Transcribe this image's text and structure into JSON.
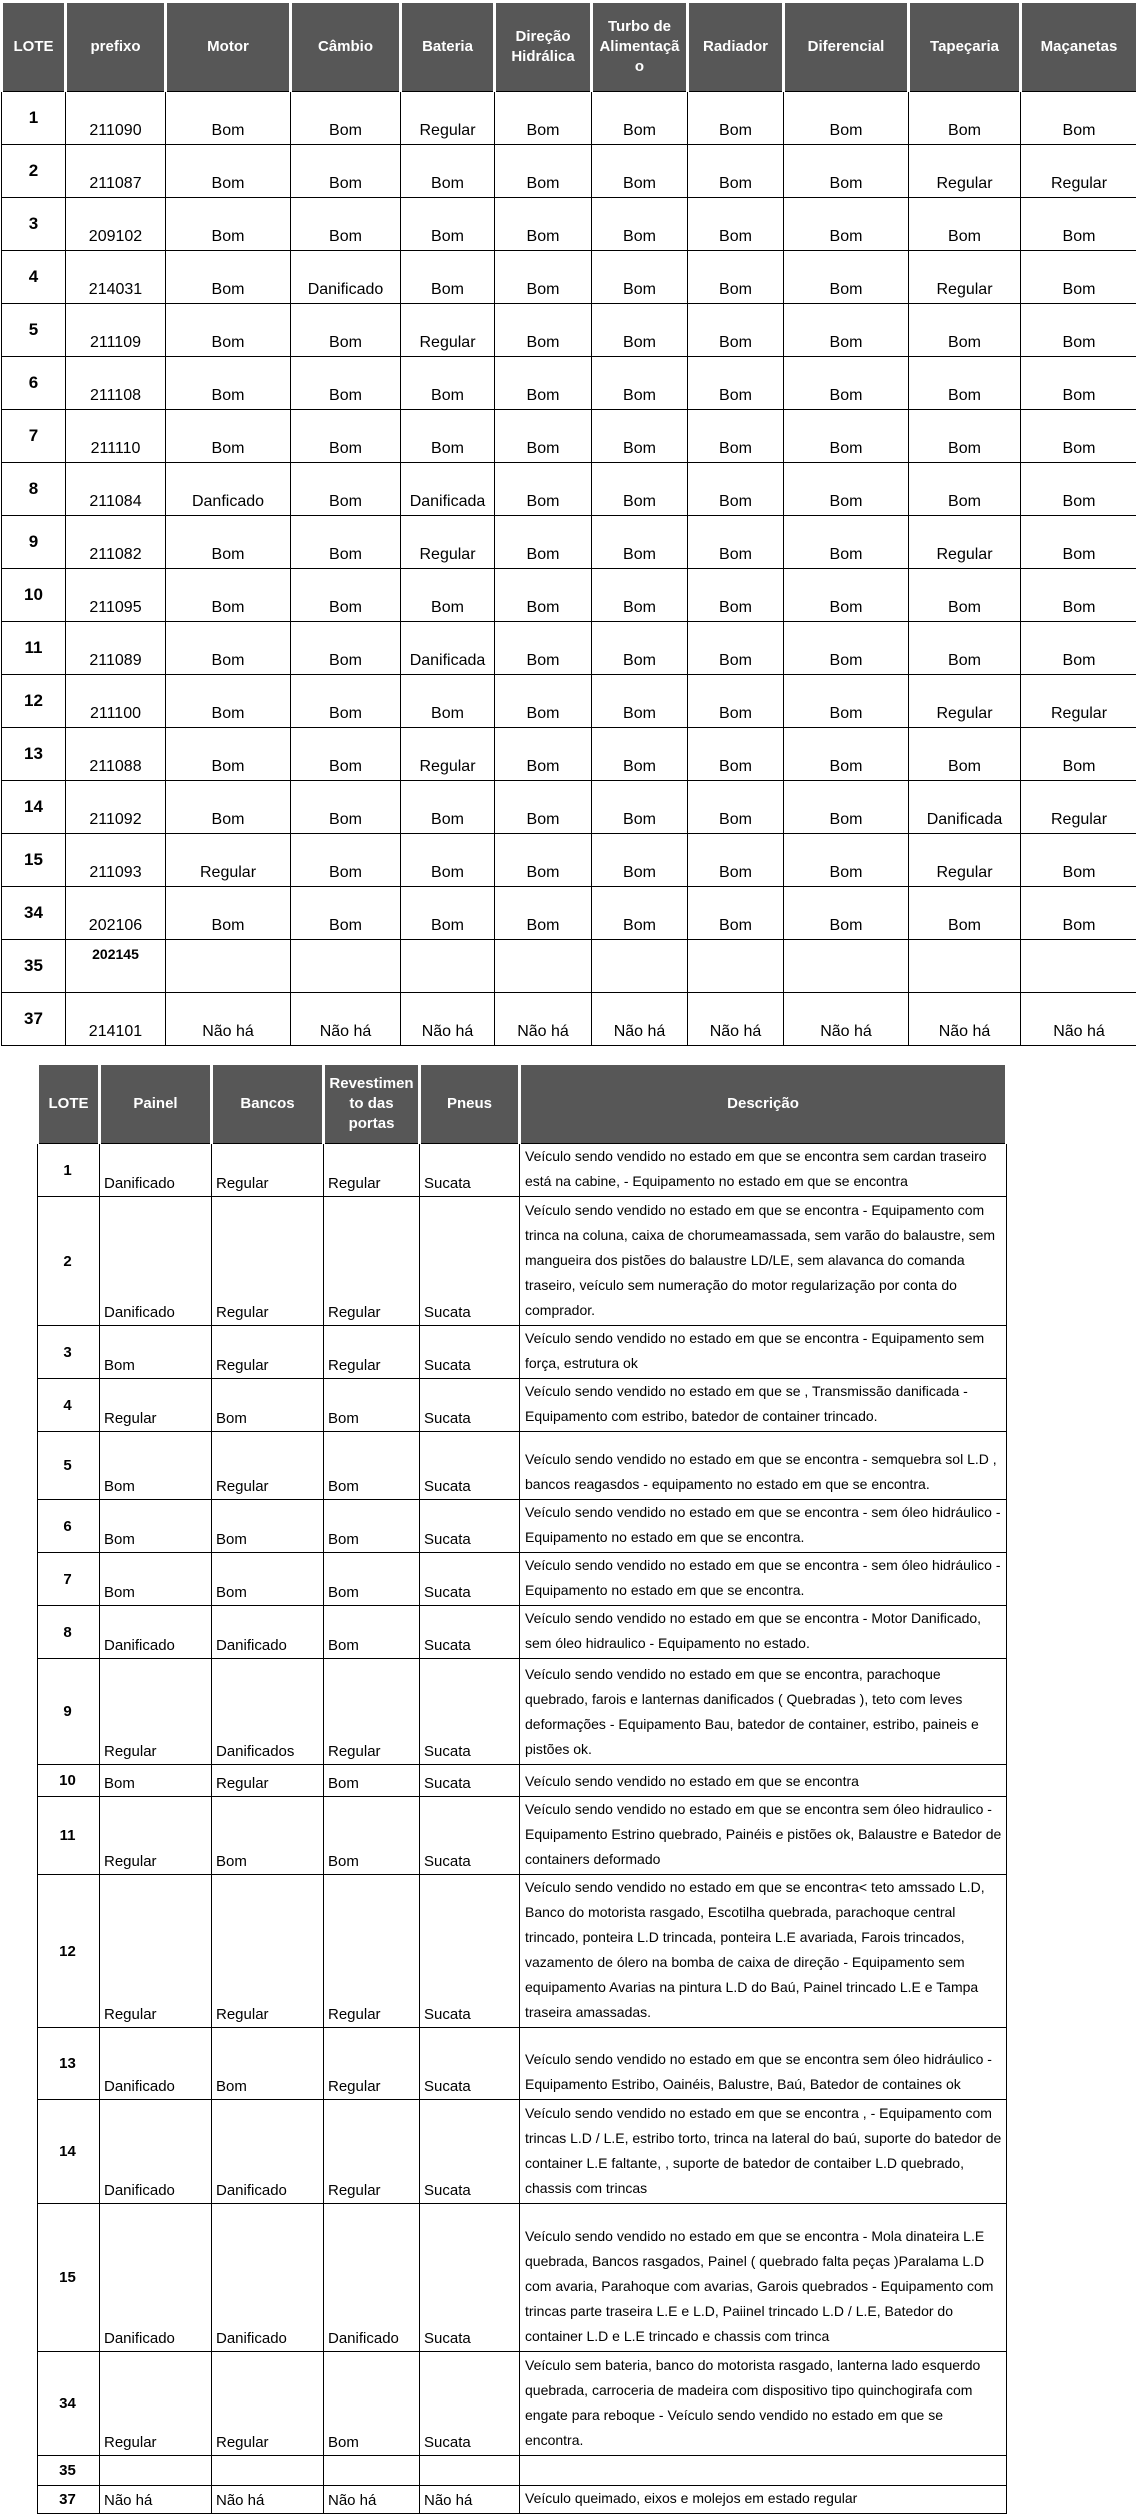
{
  "colors": {
    "header_background": "#575757",
    "header_text": "#ffffff",
    "body_text": "#000000",
    "grid_border": "#000000",
    "page_background": "#ffffff"
  },
  "table1": {
    "name": "vehicle-mechanical-condition-table",
    "columns": [
      {
        "key": "lote",
        "label": "LOTE"
      },
      {
        "key": "prefixo",
        "label": "prefixo"
      },
      {
        "key": "motor",
        "label": "Motor"
      },
      {
        "key": "cambio",
        "label": "Câmbio"
      },
      {
        "key": "bateria",
        "label": "Bateria"
      },
      {
        "key": "direcao_hidraulica",
        "label": "Direção Hidrálica"
      },
      {
        "key": "turbo_de_alimentacao",
        "label": "Turbo de Alimentação"
      },
      {
        "key": "radiador",
        "label": "Radiador"
      },
      {
        "key": "diferencial",
        "label": "Diferencial"
      },
      {
        "key": "tapecaria",
        "label": "Tapeçaria"
      },
      {
        "key": "macanetas",
        "label": "Maçanetas"
      }
    ],
    "rows": [
      {
        "lote": "1",
        "cells": [
          "211090",
          "Bom",
          "Bom",
          "Regular",
          "Bom",
          "Bom",
          "Bom",
          "Bom",
          "Bom",
          "Bom"
        ]
      },
      {
        "lote": "2",
        "cells": [
          "211087",
          "Bom",
          "Bom",
          "Bom",
          "Bom",
          "Bom",
          "Bom",
          "Bom",
          "Regular",
          "Regular"
        ]
      },
      {
        "lote": "3",
        "cells": [
          "209102",
          "Bom",
          "Bom",
          "Bom",
          "Bom",
          "Bom",
          "Bom",
          "Bom",
          "Bom",
          "Bom"
        ]
      },
      {
        "lote": "4",
        "cells": [
          "214031",
          "Bom",
          "Danificado",
          "Bom",
          "Bom",
          "Bom",
          "Bom",
          "Bom",
          "Regular",
          "Bom"
        ]
      },
      {
        "lote": "5",
        "cells": [
          "211109",
          "Bom",
          "Bom",
          "Regular",
          "Bom",
          "Bom",
          "Bom",
          "Bom",
          "Bom",
          "Bom"
        ]
      },
      {
        "lote": "6",
        "cells": [
          "211108",
          "Bom",
          "Bom",
          "Bom",
          "Bom",
          "Bom",
          "Bom",
          "Bom",
          "Bom",
          "Bom"
        ]
      },
      {
        "lote": "7",
        "cells": [
          "211110",
          "Bom",
          "Bom",
          "Bom",
          "Bom",
          "Bom",
          "Bom",
          "Bom",
          "Bom",
          "Bom"
        ]
      },
      {
        "lote": "8",
        "cells": [
          "211084",
          "Danficado",
          "Bom",
          "Danificada",
          "Bom",
          "Bom",
          "Bom",
          "Bom",
          "Bom",
          "Bom"
        ]
      },
      {
        "lote": "9",
        "cells": [
          "211082",
          "Bom",
          "Bom",
          "Regular",
          "Bom",
          "Bom",
          "Bom",
          "Bom",
          "Regular",
          "Bom"
        ]
      },
      {
        "lote": "10",
        "cells": [
          "211095",
          "Bom",
          "Bom",
          "Bom",
          "Bom",
          "Bom",
          "Bom",
          "Bom",
          "Bom",
          "Bom"
        ]
      },
      {
        "lote": "11",
        "cells": [
          "211089",
          "Bom",
          "Bom",
          "Danificada",
          "Bom",
          "Bom",
          "Bom",
          "Bom",
          "Bom",
          "Bom"
        ]
      },
      {
        "lote": "12",
        "cells": [
          "211100",
          "Bom",
          "Bom",
          "Bom",
          "Bom",
          "Bom",
          "Bom",
          "Bom",
          "Regular",
          "Regular"
        ]
      },
      {
        "lote": "13",
        "cells": [
          "211088",
          "Bom",
          "Bom",
          "Regular",
          "Bom",
          "Bom",
          "Bom",
          "Bom",
          "Bom",
          "Bom"
        ]
      },
      {
        "lote": "14",
        "cells": [
          "211092",
          "Bom",
          "Bom",
          "Bom",
          "Bom",
          "Bom",
          "Bom",
          "Bom",
          "Danificada",
          "Regular"
        ]
      },
      {
        "lote": "15",
        "cells": [
          "211093",
          "Regular",
          "Bom",
          "Bom",
          "Bom",
          "Bom",
          "Bom",
          "Bom",
          "Regular",
          "Bom"
        ]
      },
      {
        "lote": "34",
        "cells": [
          "202106",
          "Bom",
          "Bom",
          "Bom",
          "Bom",
          "Bom",
          "Bom",
          "Bom",
          "Bom",
          "Bom"
        ]
      },
      {
        "lote": "35",
        "cells": [
          "202145",
          "",
          "",
          "",
          "",
          "",
          "",
          "",
          "",
          ""
        ]
      },
      {
        "lote": "37",
        "cells": [
          "214101",
          "Não há",
          "Não há",
          "Não há",
          "Não há",
          "Não há",
          "Não há",
          "Não há",
          "Não há",
          "Não há"
        ]
      }
    ]
  },
  "table2": {
    "name": "vehicle-interior-description-table",
    "columns": [
      {
        "key": "lote",
        "label": "LOTE"
      },
      {
        "key": "painel",
        "label": "Painel"
      },
      {
        "key": "bancos",
        "label": "Bancos"
      },
      {
        "key": "revestimento_das_portas",
        "label": "Revestimento das portas"
      },
      {
        "key": "pneus",
        "label": "Pneus"
      },
      {
        "key": "descricao",
        "label": "Descrição"
      }
    ],
    "rows": [
      {
        "lote": "1",
        "cells": [
          "Danificado",
          "Regular",
          "Regular",
          "Sucata",
          "Veículo sendo vendido no estado em que se encontra sem cardan traseiro está na cabine, - Equipamento no estado em que se encontra"
        ]
      },
      {
        "lote": "2",
        "cells": [
          "Danificado",
          "Regular",
          "Regular",
          "Sucata",
          "Veículo sendo vendido no estado em que se encontra - Equipamento com trinca na coluna, caixa de chorumeamassada, sem varão do balaustre, sem mangueira dos pistões do balaustre LD/LE, sem alavanca do comanda traseiro, veículo sem numeração do motor regularização por conta do comprador."
        ]
      },
      {
        "lote": "3",
        "cells": [
          "Bom",
          "Regular",
          "Regular",
          "Sucata",
          "Veículo sendo vendido no estado em que se encontra - Equipamento sem força, estrutura ok"
        ]
      },
      {
        "lote": "4",
        "cells": [
          "Regular",
          "Bom",
          "Bom",
          "Sucata",
          "Veículo sendo vendido no estado em que se , Transmissão danificada - Equipamento com estribo, batedor de container trincado."
        ]
      },
      {
        "lote": "5",
        "cells": [
          "Bom",
          "Regular",
          "Bom",
          "Sucata",
          "Veículo sendo vendido no estado em que se encontra - semquebra sol L.D , bancos reagasdos - equipamento no estado em que se encontra."
        ]
      },
      {
        "lote": "6",
        "cells": [
          "Bom",
          "Bom",
          "Bom",
          "Sucata",
          "Veículo sendo vendido no estado em que se encontra - sem óleo hidráulico - Equipamento no estado em que se encontra."
        ]
      },
      {
        "lote": "7",
        "cells": [
          "Bom",
          "Bom",
          "Bom",
          "Sucata",
          "Veículo sendo vendido no estado em que se encontra - sem óleo hidráulico - Equipamento no estado em que se encontra."
        ]
      },
      {
        "lote": "8",
        "cells": [
          "Danificado",
          "Danificado",
          "Bom",
          "Sucata",
          "Veículo sendo vendido no estado em que se encontra - Motor Danificado, sem óleo hidraulico - Equipamento no estado."
        ]
      },
      {
        "lote": "9",
        "cells": [
          "Regular",
          "Danificados",
          "Regular",
          "Sucata",
          "Veículo sendo vendido no estado em que se encontra, parachoque quebrado, farois e lanternas danificados ( Quebradas ), teto com leves deformações - Equipamento Bau, batedor de container, estribo, paineis e pistões ok."
        ]
      },
      {
        "lote": "10",
        "cells": [
          "Bom",
          "Regular",
          "Bom",
          "Sucata",
          "Veículo sendo vendido no estado em que se encontra"
        ]
      },
      {
        "lote": "11",
        "cells": [
          "Regular",
          "Bom",
          "Bom",
          "Sucata",
          "Veículo sendo vendido no estado em que se encontra sem óleo hidraulico - Equipamento Estrino quebrado, Painéis e pistões ok, Balaustre e Batedor de containers deformado"
        ]
      },
      {
        "lote": "12",
        "cells": [
          "Regular",
          "Regular",
          "Regular",
          "Sucata",
          "Veículo sendo vendido no estado em que se encontra< teto amssado L.D, Banco do motorista rasgado, Escotilha quebrada, parachoque central trincado, ponteira L.D trincada, ponteira L.E avariada, Farois trincados, vazamento de ólero na bomba de caixa de direção - Equipamento sem equipamento Avarias na pintura L.D do Baú, Painel trincado L.E e Tampa traseira amassadas."
        ]
      },
      {
        "lote": "13",
        "cells": [
          "Danificado",
          "Bom",
          "Regular",
          "Sucata",
          "Veículo sendo vendido no estado em que se encontra sem óleo hidráulico - Equipamento Estribo, Oainéis, Balustre, Baú, Batedor de containes ok"
        ]
      },
      {
        "lote": "14",
        "cells": [
          "Danificado",
          "Danificado",
          "Regular",
          "Sucata",
          "Veículo sendo vendido no estado em que se encontra , - Equipamento com trincas L.D / L.E, estribo torto, trinca na lateral do baú, suporte do batedor de container L.E faltante, , suporte de batedor de contaiber L.D quebrado, chassis com trincas"
        ]
      },
      {
        "lote": "15",
        "cells": [
          "Danificado",
          "Danificado",
          "Danificado",
          "Sucata",
          "Veículo sendo vendido no estado em que se encontra - Mola dinateira L.E quebrada, Bancos rasgados, Painel ( quebrado falta peças )Paralama L.D com avaria, Parahoque com avarias, Garois quebrados - Equipamento com trincas parte traseira L.E e L.D, Paiinel trincado L.D / L.E, Batedor do container L.D e L.E trincado e chassis com trinca"
        ]
      },
      {
        "lote": "34",
        "cells": [
          "Regular",
          "Regular",
          "Bom",
          "Sucata",
          "Veículo sem bateria, banco do motorista rasgado, lanterna lado esquerdo quebrada, carroceria de madeira com dispositivo tipo quinchogirafa com engate para reboque - Veículo sendo vendido no estado em que se encontra."
        ]
      },
      {
        "lote": "35",
        "cells": [
          "",
          "",
          "",
          "",
          ""
        ]
      },
      {
        "lote": "37",
        "cells": [
          "Não há",
          "Não há",
          "Não há",
          "Não há",
          "Veículo queimado, eixos e molejos em estado regular"
        ]
      }
    ]
  }
}
